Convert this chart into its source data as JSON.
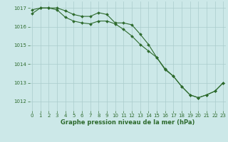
{
  "line1_x": [
    0,
    1,
    2,
    3,
    4,
    5,
    6,
    7,
    8,
    9,
    10,
    11,
    12,
    13,
    14,
    15,
    16,
    17,
    18,
    19,
    20,
    21,
    22,
    23
  ],
  "line1_y": [
    1016.9,
    1017.0,
    1017.0,
    1017.0,
    1016.85,
    1016.65,
    1016.55,
    1016.55,
    1016.75,
    1016.65,
    1016.2,
    1016.2,
    1016.1,
    1015.6,
    1015.05,
    1014.35,
    1013.7,
    1013.35,
    1012.8,
    1012.35,
    1012.2,
    1012.35,
    1012.55,
    1013.0
  ],
  "line2_x": [
    0,
    1,
    2,
    3,
    4,
    5,
    6,
    7,
    8,
    9,
    10,
    11,
    12,
    13,
    14,
    15,
    16,
    17,
    18,
    19,
    20,
    21,
    22,
    23
  ],
  "line2_y": [
    1016.7,
    1017.0,
    1017.0,
    1016.9,
    1016.5,
    1016.3,
    1016.2,
    1016.15,
    1016.3,
    1016.3,
    1016.15,
    1015.85,
    1015.5,
    1015.05,
    1014.7,
    1014.35,
    1013.75,
    1013.35,
    1012.8,
    1012.35,
    1012.2,
    1012.35,
    1012.55,
    1013.0
  ],
  "line_color": "#2d6a2d",
  "bg_color": "#cce8e8",
  "grid_color": "#aacccc",
  "xlabel": "Graphe pression niveau de la mer (hPa)",
  "ylim": [
    1011.5,
    1017.35
  ],
  "xlim": [
    -0.3,
    23.3
  ],
  "yticks": [
    1012,
    1013,
    1014,
    1015,
    1016,
    1017
  ],
  "xticks": [
    0,
    1,
    2,
    3,
    4,
    5,
    6,
    7,
    8,
    9,
    10,
    11,
    12,
    13,
    14,
    15,
    16,
    17,
    18,
    19,
    20,
    21,
    22,
    23
  ],
  "tick_fontsize": 5.0,
  "xlabel_fontsize": 6.0,
  "marker_size": 2.0,
  "line_width": 0.8
}
